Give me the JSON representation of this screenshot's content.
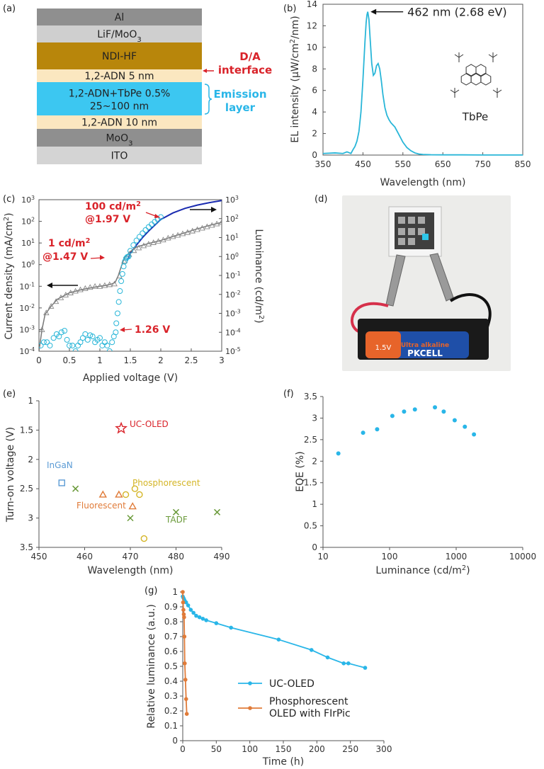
{
  "figure": {
    "panel_labels": [
      "(a)",
      "(b)",
      "(c)",
      "(d)",
      "(e)",
      "(f)",
      "(g)"
    ]
  },
  "panel_a": {
    "layers": [
      {
        "label": "Al",
        "color": "#8f8f8f"
      },
      {
        "label": "LiF/MoO",
        "sub": "3",
        "color": "#cfcfcf"
      },
      {
        "label": "NDI-HF",
        "color": "#b8860b"
      },
      {
        "label": "1,2-ADN 5 nm",
        "color": "#fbe7c0"
      },
      {
        "label": "1,2-ADN+TbPe 0.5%",
        "label2": "25~100 nm",
        "color": "#3cc7f1"
      },
      {
        "label": "1,2-ADN 10 nm",
        "color": "#fbe7c0"
      },
      {
        "label": "MoO",
        "sub": "3",
        "color": "#8f8f8f"
      },
      {
        "label": "ITO",
        "color": "#d4d4d4"
      }
    ],
    "annot_da": [
      "D/A",
      "interface"
    ],
    "annot_em": [
      "Emission",
      "layer"
    ],
    "colors": {
      "da": "#d9232a",
      "em": "#29b6e8"
    }
  },
  "panel_b": {
    "chart_data": {
      "type": "line",
      "x": [
        350,
        380,
        400,
        410,
        420,
        425,
        430,
        435,
        440,
        445,
        450,
        455,
        458,
        460,
        462,
        465,
        468,
        472,
        476,
        480,
        484,
        488,
        492,
        496,
        500,
        505,
        510,
        515,
        520,
        525,
        530,
        540,
        550,
        560,
        570,
        580,
        590,
        600,
        620,
        650,
        700,
        750,
        800,
        850
      ],
      "series": [
        {
          "values": [
            0.15,
            0.2,
            0.15,
            0.3,
            0.15,
            0.5,
            0.8,
            1.3,
            2.2,
            4.0,
            7.0,
            10.5,
            12.3,
            13.0,
            13.3,
            12.6,
            10.8,
            8.5,
            7.4,
            7.6,
            8.3,
            8.5,
            8.0,
            6.9,
            5.6,
            4.4,
            3.7,
            3.3,
            3.0,
            2.8,
            2.6,
            1.9,
            1.2,
            0.7,
            0.4,
            0.2,
            0.1,
            0.06,
            0.03,
            0.02,
            0.02,
            0.01,
            0.01,
            0.01
          ]
        }
      ],
      "xlabel": "Wavelength (nm)",
      "ylabel_pre": "EL intensity (μW/cm",
      "ylabel_sup": "2",
      "ylabel_post": "/nm)",
      "xlim": [
        350,
        850
      ],
      "ylim": [
        0,
        14
      ],
      "xticks": [
        350,
        450,
        550,
        650,
        750,
        850
      ],
      "yticks": [
        0,
        2,
        4,
        6,
        8,
        10,
        12,
        14
      ],
      "annotation": "462 nm (2.68 eV)",
      "molecule_label": "TbPe",
      "color": "#29b6d8"
    }
  },
  "panel_c": {
    "chart_data": {
      "type": "scatter",
      "xlabel": "Applied voltage (V)",
      "ylabel_left_pre": "Current density (mA/cm",
      "ylabel_left_sup": "2",
      "ylabel_left_post": ")",
      "ylabel_right_pre": "Luminance (cd/m",
      "ylabel_right_sup": "2",
      "ylabel_right_post": ")",
      "xlim": [
        0,
        3
      ],
      "xticks": [
        0,
        0.5,
        1,
        1.5,
        2,
        2.5,
        3
      ],
      "xtick_labels": [
        "0",
        "0.5",
        "1",
        "1.5",
        "2",
        "2.5",
        "3"
      ],
      "ylim_left_log10": [
        -4,
        3
      ],
      "ylim_right_log10": [
        -5,
        3
      ],
      "left_tick_exps": [
        3,
        2,
        1,
        0,
        -1,
        -2,
        -3,
        -4
      ],
      "right_tick_exps": [
        3,
        2,
        1,
        0,
        -1,
        -2,
        -3,
        -4,
        -5
      ],
      "current_density_fit": {
        "x": [
          0,
          0.05,
          0.1,
          0.2,
          0.3,
          0.5,
          0.7,
          0.9,
          1.0,
          1.1,
          1.2,
          1.25,
          1.3,
          1.35,
          1.4,
          1.5,
          1.6,
          1.8,
          2.0,
          2.2,
          2.4,
          2.6,
          2.8,
          3.0
        ],
        "y": [
          0.0001,
          0.001,
          0.005,
          0.012,
          0.025,
          0.05,
          0.07,
          0.09,
          0.1,
          0.11,
          0.13,
          0.15,
          0.3,
          0.8,
          2,
          4,
          6.5,
          9.5,
          13,
          20,
          30,
          45,
          65,
          90
        ],
        "color": "#777777"
      },
      "current_density_markers": {
        "x": [
          0.05,
          0.12,
          0.2,
          0.28,
          0.36,
          0.44,
          0.52,
          0.6,
          0.68,
          0.76,
          0.84,
          0.92,
          1.0,
          1.08,
          1.16,
          1.24,
          1.32,
          1.4,
          1.48,
          1.56,
          1.64,
          1.72,
          1.8,
          1.88,
          1.96,
          2.04,
          2.12,
          2.2,
          2.28,
          2.36,
          2.44,
          2.52,
          2.6,
          2.68,
          2.76,
          2.84,
          2.92,
          3.0
        ],
        "y": [
          0.001,
          0.006,
          0.012,
          0.02,
          0.03,
          0.04,
          0.05,
          0.06,
          0.07,
          0.08,
          0.09,
          0.1,
          0.1,
          0.11,
          0.12,
          0.13,
          0.3,
          1.5,
          3,
          4.5,
          6,
          7.5,
          9,
          10.5,
          12,
          14,
          17,
          20,
          23,
          27,
          31,
          36,
          42,
          49,
          57,
          66,
          77,
          90
        ],
        "color": "#888888"
      },
      "luminance_low_points": {
        "x": [
          0.03,
          0.08,
          0.13,
          0.18,
          0.24,
          0.29,
          0.33,
          0.37,
          0.42,
          0.46,
          0.5,
          0.55,
          0.6,
          0.64,
          0.68,
          0.72,
          0.76,
          0.8,
          0.84,
          0.88,
          0.92,
          0.96,
          1.0,
          1.04,
          1.08,
          1.12,
          1.16,
          1.2,
          1.23,
          1.26
        ],
        "y": [
          2e-05,
          3e-05,
          3e-05,
          2e-05,
          5e-05,
          8e-05,
          6e-05,
          0.0001,
          0.00012,
          4e-05,
          2e-05,
          2e-05,
          1e-05,
          2e-05,
          3e-05,
          5e-05,
          8e-05,
          4e-05,
          7e-05,
          6e-05,
          3e-05,
          4e-05,
          5e-05,
          2e-05,
          3e-05,
          2e-05,
          1e-05,
          3e-05,
          6e-05,
          0.0001
        ]
      },
      "luminance_rise_points": {
        "x": [
          1.27,
          1.29,
          1.31,
          1.33,
          1.35,
          1.37,
          1.39,
          1.41,
          1.43,
          1.45,
          1.47,
          1.5,
          1.55,
          1.6,
          1.65,
          1.7,
          1.75,
          1.8,
          1.85,
          1.9,
          1.95,
          2.0
        ],
        "y": [
          0.0003,
          0.001,
          0.004,
          0.015,
          0.05,
          0.12,
          0.3,
          0.55,
          0.8,
          0.95,
          1,
          2,
          4,
          7,
          11,
          17,
          25,
          36,
          50,
          68,
          90,
          120
        ]
      },
      "luminance_fit": {
        "x": [
          1.45,
          1.5,
          1.6,
          1.7,
          1.8,
          1.9,
          2.0,
          2.2,
          2.4,
          2.6,
          2.8,
          3.0
        ],
        "y": [
          0.6,
          1.5,
          4,
          10,
          22,
          45,
          90,
          200,
          350,
          520,
          700,
          900
        ],
        "color": "#1a2bb0"
      },
      "marker_color": "#29b6d8",
      "annot_color": "#d9232a",
      "annot_100": [
        "100 cd/m",
        "2",
        "@1.97 V"
      ],
      "annot_1": [
        "1 cd/m",
        "2",
        "@1.47 V"
      ],
      "annot_126": "1.26 V"
    }
  },
  "panel_d": {
    "battery_text": [
      "Ultra alkaline",
      "1.5V",
      "PKCELL"
    ],
    "colors": {
      "battery": "#1f4fa8",
      "label": "#e7642a",
      "wire_red": "#d6304a",
      "wire_black": "#111111",
      "device": "#2ec6e8"
    }
  },
  "panel_e": {
    "chart_data": {
      "type": "scatter",
      "xlabel": "Wavelength (nm)",
      "ylabel": "Turn-on voltage (V)",
      "xlim": [
        450,
        490
      ],
      "ylim": [
        1,
        3.5
      ],
      "y_inverted": true,
      "xticks": [
        450,
        460,
        470,
        480,
        490
      ],
      "yticks": [
        1,
        1.5,
        2,
        2.5,
        3,
        3.5
      ],
      "series": [
        {
          "name": "UC-OLED",
          "marker": "star",
          "color": "#d9232a",
          "points": [
            [
              468,
              1.47
            ]
          ]
        },
        {
          "name": "InGaN",
          "marker": "square",
          "color": "#5b9bd5",
          "points": [
            [
              455,
              2.4
            ]
          ]
        },
        {
          "name": "Fluorescent",
          "marker": "triangle",
          "color": "#e07b39",
          "points": [
            [
              464,
              2.6
            ],
            [
              467.5,
              2.6
            ],
            [
              470.5,
              2.8
            ]
          ]
        },
        {
          "name": "Phosphorescent",
          "marker": "circle",
          "color": "#d4b526",
          "points": [
            [
              469,
              2.6
            ],
            [
              471,
              2.5
            ],
            [
              472,
              2.6
            ],
            [
              473,
              3.35
            ]
          ]
        },
        {
          "name": "TADF",
          "marker": "x",
          "color": "#6a9a3a",
          "points": [
            [
              458,
              2.5
            ],
            [
              470,
              3.0
            ],
            [
              480,
              2.9
            ],
            [
              489,
              2.9
            ]
          ]
        }
      ]
    }
  },
  "panel_f": {
    "chart_data": {
      "type": "scatter",
      "xlabel_pre": "Luminance (cd/m",
      "xlabel_sup": "2",
      "xlabel_post": ")",
      "ylabel": "EQE (%)",
      "x_log": true,
      "xlim": [
        10,
        10000
      ],
      "ylim": [
        0,
        3.5
      ],
      "xticks": [
        10,
        100,
        1000,
        10000
      ],
      "yticks": [
        0,
        0.5,
        1,
        1.5,
        2,
        2.5,
        3,
        3.5
      ],
      "x": [
        17,
        40,
        65,
        110,
        165,
        240,
        480,
        650,
        950,
        1350,
        1850
      ],
      "y": [
        2.18,
        2.66,
        2.74,
        3.05,
        3.15,
        3.2,
        3.25,
        3.15,
        2.95,
        2.8,
        2.62
      ],
      "color": "#29b6e8"
    }
  },
  "panel_g": {
    "chart_data": {
      "type": "line",
      "xlabel": "Time (h)",
      "ylabel": "Relative luminance (a.u.)",
      "xlim": [
        0,
        300
      ],
      "ylim": [
        0,
        1
      ],
      "xticks": [
        0,
        50,
        100,
        150,
        200,
        250,
        300
      ],
      "yticks": [
        0,
        0.1,
        0.2,
        0.3,
        0.4,
        0.5,
        0.6,
        0.7,
        0.8,
        0.9,
        1
      ],
      "series": [
        {
          "name": "UC-OLED",
          "color": "#29b6e8",
          "x": [
            0,
            1,
            2,
            3,
            5,
            8,
            12,
            16,
            20,
            25,
            30,
            35,
            50,
            72,
            143,
            192,
            216,
            240,
            247,
            272
          ],
          "y": [
            0.97,
            0.96,
            0.95,
            0.94,
            0.93,
            0.91,
            0.88,
            0.86,
            0.84,
            0.83,
            0.82,
            0.81,
            0.79,
            0.76,
            0.68,
            0.61,
            0.56,
            0.52,
            0.52,
            0.49
          ]
        },
        {
          "name_line1": "Phosphorescent",
          "name_line2": "OLED with FIrPic",
          "color": "#e07b39",
          "x": [
            0,
            0.5,
            1,
            1.5,
            2,
            2.5,
            3,
            4,
            5,
            6
          ],
          "y": [
            1.0,
            0.93,
            0.88,
            0.85,
            0.83,
            0.7,
            0.52,
            0.41,
            0.28,
            0.18
          ]
        }
      ]
    }
  }
}
